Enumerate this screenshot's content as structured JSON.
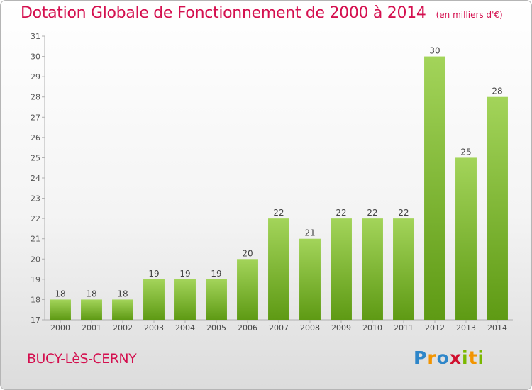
{
  "header": {
    "title": "Dotation Globale de Fonctionnement de 2000 à 2014",
    "unit": "(en milliers d'€)"
  },
  "footer": {
    "commune": "BUCY-LèS-CERNY",
    "logo_letters": [
      "P",
      "r",
      "o",
      "x",
      "i",
      "t",
      "i"
    ]
  },
  "colors": {
    "bar_light": "#a3d45a",
    "bar_dark": "#5e9a14",
    "title": "#d4104f"
  },
  "chart_data": {
    "type": "bar",
    "title": "Dotation Globale de Fonctionnement de 2000 à 2014",
    "ylabel": "",
    "xlabel": "",
    "categories": [
      "2000",
      "2001",
      "2002",
      "2003",
      "2004",
      "2005",
      "2006",
      "2007",
      "2008",
      "2009",
      "2010",
      "2011",
      "2012",
      "2013",
      "2014"
    ],
    "values": [
      18,
      18,
      18,
      19,
      19,
      19,
      20,
      22,
      21,
      22,
      22,
      22,
      30,
      25,
      28
    ],
    "ylim": [
      17,
      31
    ],
    "yticks": [
      17,
      18,
      19,
      20,
      21,
      22,
      23,
      24,
      25,
      26,
      27,
      28,
      29,
      30,
      31
    ],
    "grid": false,
    "data_labels": true
  }
}
